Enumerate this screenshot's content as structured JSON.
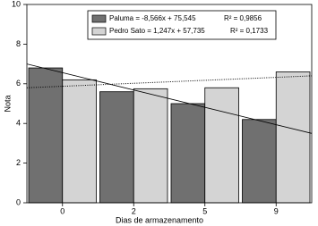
{
  "chart_data": {
    "type": "bar",
    "x_label": "Dias de armazenamento",
    "y_label": "Nota",
    "categories": [
      "0",
      "2",
      "5",
      "9"
    ],
    "series": [
      {
        "name": "Paluma = -8,566x + 75,545",
        "r2": "R² = 0,9856",
        "color": "#707070",
        "values": [
          6.8,
          5.6,
          5.0,
          4.2
        ],
        "trend": [
          7.0,
          3.5
        ],
        "trend_style": "solid"
      },
      {
        "name": "Pedro Sato = 1,247x + 57,735",
        "r2": "R² = 0,1733",
        "color": "#d4d4d4",
        "values": [
          6.2,
          5.75,
          5.8,
          6.6
        ],
        "trend": [
          5.8,
          6.4
        ],
        "trend_style": "dotted"
      }
    ],
    "ylim": [
      0,
      10
    ],
    "yticks": [
      0,
      2,
      4,
      6,
      8,
      10
    ],
    "grid": false
  }
}
